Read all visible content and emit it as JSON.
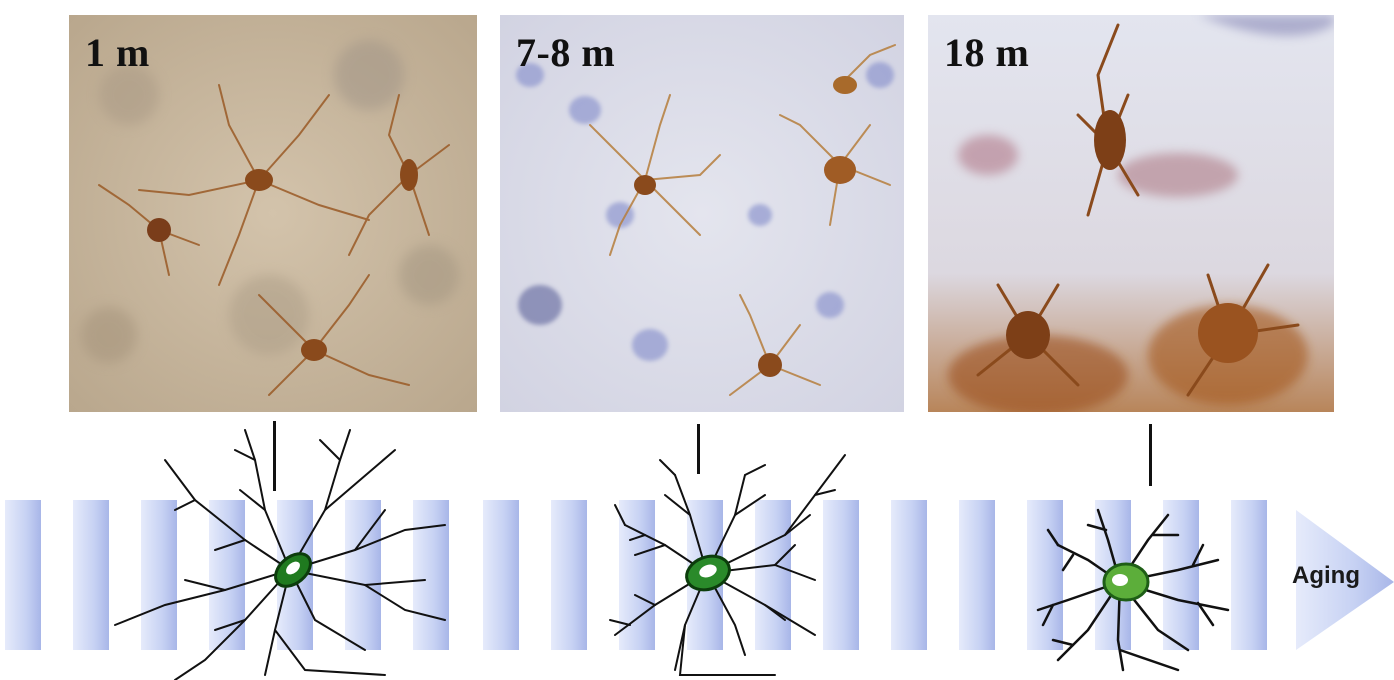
{
  "panels": [
    {
      "label": "1 m"
    },
    {
      "label": "7-8 m"
    },
    {
      "label": "18 m"
    }
  ],
  "timeline": {
    "arrow_label": "Aging",
    "bar_color": "#c9d3f2",
    "bar_edge_color": "#a9b6e6"
  },
  "stain_colors": {
    "young_background": "#cbb9a0",
    "older_background": "#dde2ee",
    "microglia": "#8a4a1c",
    "nuclei": "#7f88c8"
  },
  "cell_drawing": {
    "soma_color": "#1f8a1f",
    "soma_highlight": "#7cc443",
    "branch_color": "#111111"
  }
}
